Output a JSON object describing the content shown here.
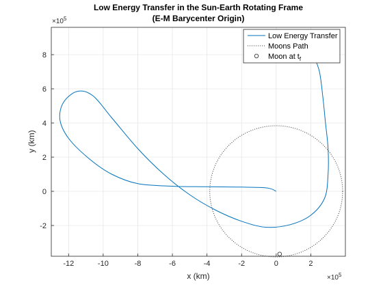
{
  "chart_data": {
    "type": "line",
    "title_lines": [
      "Low Energy Transfer in the Sun-Earth Rotating Frame",
      "(E-M Barycenter Origin)"
    ],
    "xlabel": "x (km)",
    "ylabel": "y (km)",
    "x_multiplier": "×10",
    "x_exponent": "5",
    "y_multiplier": "×10",
    "y_exponent": "5",
    "xlim": [
      -1300000,
      400000
    ],
    "ylim": [
      -380000,
      960000
    ],
    "xticks": [
      -1200000,
      -1000000,
      -800000,
      -600000,
      -400000,
      -200000,
      0,
      200000
    ],
    "xtick_labels": [
      "-12",
      "-10",
      "-8",
      "-6",
      "-4",
      "-2",
      "0",
      "2"
    ],
    "yticks": [
      -200000,
      0,
      200000,
      400000,
      600000,
      800000
    ],
    "ytick_labels": [
      "-2",
      "0",
      "2",
      "4",
      "6",
      "8"
    ],
    "grid": true,
    "legend_position": "top-right",
    "colors": {
      "transfer": "#0072BD",
      "moon_path": "#333333",
      "moon_marker": "#333333",
      "axes": "#262626",
      "grid": "#e6e6e6"
    },
    "series": [
      {
        "name": "Low Energy Transfer",
        "style": "solid",
        "points": [
          [
            0,
            0
          ],
          [
            -30000,
            15000
          ],
          [
            -80000,
            22000
          ],
          [
            -200000,
            25000
          ],
          [
            -400000,
            27000
          ],
          [
            -600000,
            30000
          ],
          [
            -800000,
            45000
          ],
          [
            -950000,
            100000
          ],
          [
            -1080000,
            190000
          ],
          [
            -1200000,
            310000
          ],
          [
            -1250000,
            420000
          ],
          [
            -1230000,
            520000
          ],
          [
            -1150000,
            585000
          ],
          [
            -1060000,
            560000
          ],
          [
            -950000,
            430000
          ],
          [
            -800000,
            250000
          ],
          [
            -650000,
            100000
          ],
          [
            -500000,
            -20000
          ],
          [
            -350000,
            -110000
          ],
          [
            -200000,
            -175000
          ],
          [
            -60000,
            -210000
          ],
          [
            80000,
            -195000
          ],
          [
            200000,
            -140000
          ],
          [
            280000,
            -40000
          ],
          [
            300000,
            100000
          ],
          [
            300000,
            250000
          ],
          [
            285000,
            400000
          ],
          [
            270000,
            550000
          ],
          [
            250000,
            700000
          ],
          [
            215000,
            800000
          ]
        ]
      },
      {
        "name": "Moons Path",
        "style": "dotted",
        "center": [
          0,
          0
        ],
        "radius": 384000
      },
      {
        "name": "Moon at t_f",
        "style": "marker-circle",
        "points": [
          [
            20000,
            -367000
          ]
        ]
      }
    ],
    "legend": [
      {
        "label": "Low Energy Transfer",
        "sub": ""
      },
      {
        "label": "Moons Path",
        "sub": ""
      },
      {
        "label": "Moon at t",
        "sub": "f"
      }
    ]
  }
}
